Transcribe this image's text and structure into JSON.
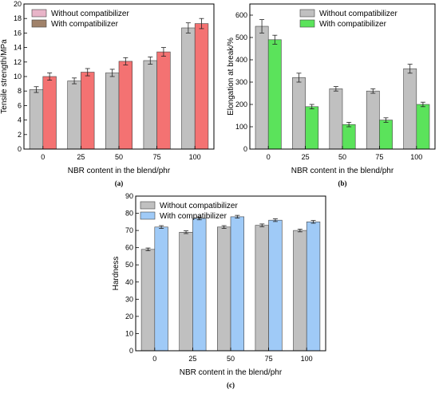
{
  "chart_data": [
    {
      "type": "bar",
      "panel_label": "(a)",
      "categories": [
        "0",
        "25",
        "50",
        "75",
        "100"
      ],
      "xlabel": "NBR content in the blend/phr",
      "ylabel": "Tensile strength/MPa",
      "ylim": [
        0,
        20
      ],
      "yticks": [
        0,
        2,
        4,
        6,
        8,
        10,
        12,
        14,
        16,
        18,
        20
      ],
      "legend_position": "top-left",
      "series": [
        {
          "name": "Without compatibilizer",
          "values": [
            8.2,
            9.4,
            10.5,
            12.2,
            16.7
          ],
          "errors": [
            0.4,
            0.4,
            0.5,
            0.5,
            0.7
          ],
          "color": "#c0c0c0",
          "legend_color": "#e8b4c8"
        },
        {
          "name": "With compatibilizer",
          "values": [
            10.0,
            10.6,
            12.1,
            13.4,
            17.3
          ],
          "errors": [
            0.5,
            0.5,
            0.5,
            0.6,
            0.7
          ],
          "color": "#f47272",
          "legend_color": "#a0826a"
        }
      ]
    },
    {
      "type": "bar",
      "panel_label": "(b)",
      "categories": [
        "0",
        "25",
        "50",
        "75",
        "100"
      ],
      "xlabel": "NBR content in the blend/phr",
      "ylabel": "Elongation at break/%",
      "ylim": [
        0,
        650
      ],
      "yticks": [
        0,
        100,
        200,
        300,
        400,
        500,
        600
      ],
      "legend_position": "top-right",
      "series": [
        {
          "name": "Without compatibilizer",
          "values": [
            550,
            320,
            270,
            260,
            360
          ],
          "errors": [
            30,
            20,
            10,
            10,
            20
          ],
          "color": "#c0c0c0",
          "legend_color": "#c0c0c0"
        },
        {
          "name": "With compatibilizer",
          "values": [
            490,
            190,
            110,
            130,
            200
          ],
          "errors": [
            20,
            10,
            10,
            10,
            10
          ],
          "color": "#5be35b",
          "legend_color": "#5be35b"
        }
      ]
    },
    {
      "type": "bar",
      "panel_label": "(c)",
      "categories": [
        "0",
        "25",
        "50",
        "75",
        "100"
      ],
      "xlabel": "NBR content in the blend/phr",
      "ylabel": "Hardness",
      "ylim": [
        0,
        90
      ],
      "yticks": [
        0,
        10,
        20,
        30,
        40,
        50,
        60,
        70,
        80,
        90
      ],
      "legend_position": "top",
      "series": [
        {
          "name": "Without compatibilizer",
          "values": [
            59,
            69,
            72,
            73,
            70
          ],
          "errors": [
            0.8,
            0.8,
            0.8,
            0.8,
            0.8
          ],
          "color": "#c0c0c0",
          "legend_color": "#c0c0c0"
        },
        {
          "name": "With compatibilizer",
          "values": [
            72,
            77,
            78,
            76,
            75
          ],
          "errors": [
            0.8,
            0.8,
            0.8,
            0.8,
            0.8
          ],
          "color": "#9fcaf7",
          "legend_color": "#9fcaf7"
        }
      ]
    }
  ]
}
